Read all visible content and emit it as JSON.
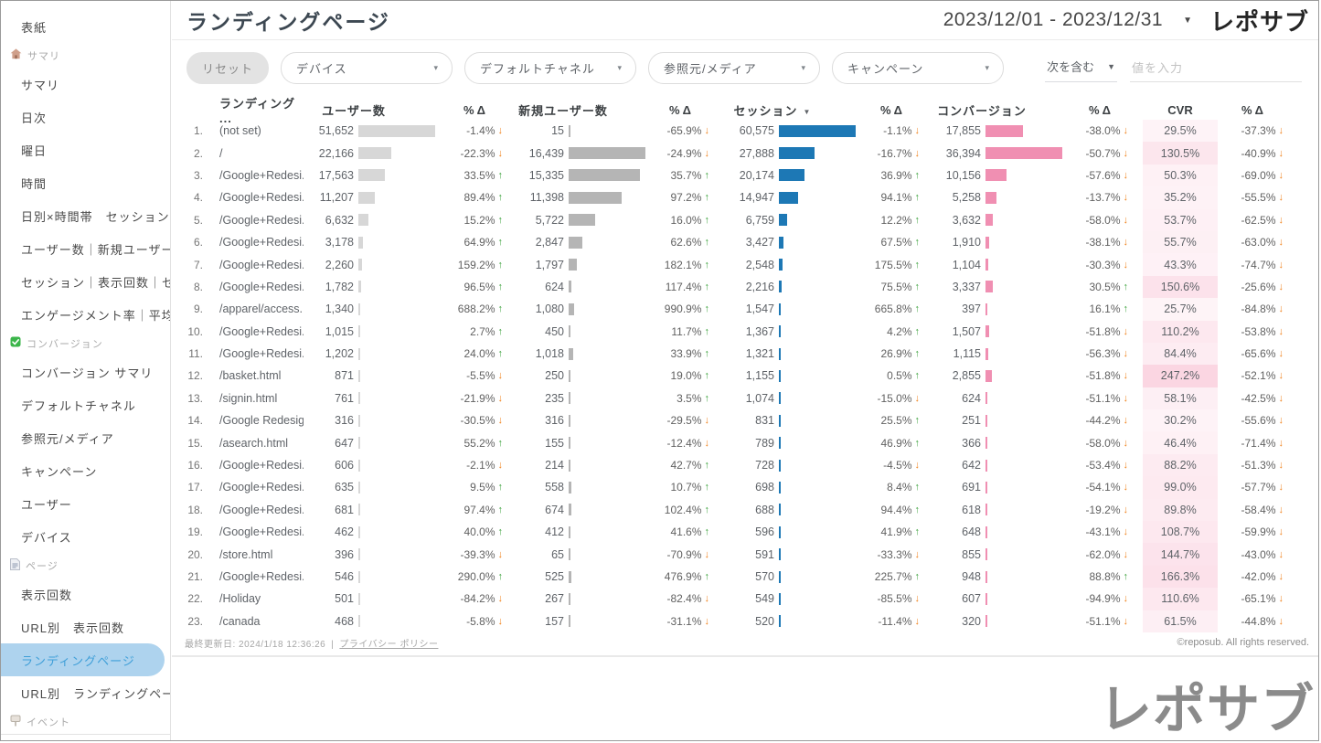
{
  "sidebar": {
    "items": [
      {
        "type": "item",
        "label": "表紙"
      },
      {
        "type": "section",
        "label": "サマリ",
        "icon": "home-icon"
      },
      {
        "type": "item",
        "label": "サマリ"
      },
      {
        "type": "item",
        "label": "日次"
      },
      {
        "type": "item",
        "label": "曜日"
      },
      {
        "type": "item",
        "label": "時間"
      },
      {
        "type": "item",
        "label": "日別×時間帯　セッション"
      },
      {
        "type": "item",
        "label": "ユーザー数｜新規ユーザー数"
      },
      {
        "type": "item",
        "label": "セッション｜表示回数｜セ..."
      },
      {
        "type": "item",
        "label": "エンゲージメント率｜平均..."
      },
      {
        "type": "section",
        "label": "コンバージョン",
        "icon": "check-icon"
      },
      {
        "type": "item",
        "label": "コンバージョン サマリ"
      },
      {
        "type": "item",
        "label": "デフォルトチャネル"
      },
      {
        "type": "item",
        "label": "参照元/メディア"
      },
      {
        "type": "item",
        "label": "キャンペーン"
      },
      {
        "type": "item",
        "label": "ユーザー"
      },
      {
        "type": "item",
        "label": "デバイス"
      },
      {
        "type": "section",
        "label": "ページ",
        "icon": "page-icon"
      },
      {
        "type": "item",
        "label": "表示回数"
      },
      {
        "type": "item",
        "label": "URL別　表示回数"
      },
      {
        "type": "item",
        "label": "ランディングページ",
        "active": true
      },
      {
        "type": "item",
        "label": "URL別　ランディングページ"
      },
      {
        "type": "section",
        "label": "イベント",
        "icon": "sign-icon"
      }
    ],
    "collapse_icon": "chevron-left-icon"
  },
  "header": {
    "title": "ランディングページ",
    "date_range": "2023/12/01 - 2023/12/31",
    "logo": "レポサブ"
  },
  "filters": {
    "reset_label": "リセット",
    "dropdowns": [
      "デバイス",
      "デフォルトチャネル",
      "参照元/メディア",
      "キャンペーン"
    ],
    "condition": "次を含む",
    "input_placeholder": "値を入力"
  },
  "table": {
    "headers": [
      "ランディング ...",
      "ユーザー数",
      "% Δ",
      "新規ユーザー数",
      "% Δ",
      "セッション",
      "% Δ",
      "コンバージョン",
      "% Δ",
      "CVR",
      "% Δ"
    ],
    "sort_column": "セッション",
    "rows": [
      {
        "n": "1.",
        "page": "(not set)",
        "users": "51,652",
        "d1": "-1.4%",
        "nu": "15",
        "d2": "-65.9%",
        "sess": "60,575",
        "d3": "-1.1%",
        "conv": "17,855",
        "d4": "-38.0%",
        "cvr": "29.5%",
        "d5": "-37.3%"
      },
      {
        "n": "2.",
        "page": "/",
        "users": "22,166",
        "d1": "-22.3%",
        "nu": "16,439",
        "d2": "-24.9%",
        "sess": "27,888",
        "d3": "-16.7%",
        "conv": "36,394",
        "d4": "-50.7%",
        "cvr": "130.5%",
        "d5": "-40.9%"
      },
      {
        "n": "3.",
        "page": "/Google+Redesi...",
        "users": "17,563",
        "d1": "33.5%",
        "nu": "15,335",
        "d2": "35.7%",
        "sess": "20,174",
        "d3": "36.9%",
        "conv": "10,156",
        "d4": "-57.6%",
        "cvr": "50.3%",
        "d5": "-69.0%"
      },
      {
        "n": "4.",
        "page": "/Google+Redesi...",
        "users": "11,207",
        "d1": "89.4%",
        "nu": "11,398",
        "d2": "97.2%",
        "sess": "14,947",
        "d3": "94.1%",
        "conv": "5,258",
        "d4": "-13.7%",
        "cvr": "35.2%",
        "d5": "-55.5%"
      },
      {
        "n": "5.",
        "page": "/Google+Redesi...",
        "users": "6,632",
        "d1": "15.2%",
        "nu": "5,722",
        "d2": "16.0%",
        "sess": "6,759",
        "d3": "12.2%",
        "conv": "3,632",
        "d4": "-58.0%",
        "cvr": "53.7%",
        "d5": "-62.5%"
      },
      {
        "n": "6.",
        "page": "/Google+Redesi...",
        "users": "3,178",
        "d1": "64.9%",
        "nu": "2,847",
        "d2": "62.6%",
        "sess": "3,427",
        "d3": "67.5%",
        "conv": "1,910",
        "d4": "-38.1%",
        "cvr": "55.7%",
        "d5": "-63.0%"
      },
      {
        "n": "7.",
        "page": "/Google+Redesi...",
        "users": "2,260",
        "d1": "159.2%",
        "nu": "1,797",
        "d2": "182.1%",
        "sess": "2,548",
        "d3": "175.5%",
        "conv": "1,104",
        "d4": "-30.3%",
        "cvr": "43.3%",
        "d5": "-74.7%"
      },
      {
        "n": "8.",
        "page": "/Google+Redesi...",
        "users": "1,782",
        "d1": "96.5%",
        "nu": "624",
        "d2": "117.4%",
        "sess": "2,216",
        "d3": "75.5%",
        "conv": "3,337",
        "d4": "30.5%",
        "cvr": "150.6%",
        "d5": "-25.6%"
      },
      {
        "n": "9.",
        "page": "/apparel/access...",
        "users": "1,340",
        "d1": "688.2%",
        "nu": "1,080",
        "d2": "990.9%",
        "sess": "1,547",
        "d3": "665.8%",
        "conv": "397",
        "d4": "16.1%",
        "cvr": "25.7%",
        "d5": "-84.8%"
      },
      {
        "n": "10.",
        "page": "/Google+Redesi...",
        "users": "1,015",
        "d1": "2.7%",
        "nu": "450",
        "d2": "11.7%",
        "sess": "1,367",
        "d3": "4.2%",
        "conv": "1,507",
        "d4": "-51.8%",
        "cvr": "110.2%",
        "d5": "-53.8%"
      },
      {
        "n": "11.",
        "page": "/Google+Redesi...",
        "users": "1,202",
        "d1": "24.0%",
        "nu": "1,018",
        "d2": "33.9%",
        "sess": "1,321",
        "d3": "26.9%",
        "conv": "1,115",
        "d4": "-56.3%",
        "cvr": "84.4%",
        "d5": "-65.6%"
      },
      {
        "n": "12.",
        "page": "/basket.html",
        "users": "871",
        "d1": "-5.5%",
        "nu": "250",
        "d2": "19.0%",
        "sess": "1,155",
        "d3": "0.5%",
        "conv": "2,855",
        "d4": "-51.8%",
        "cvr": "247.2%",
        "d5": "-52.1%"
      },
      {
        "n": "13.",
        "page": "/signin.html",
        "users": "761",
        "d1": "-21.9%",
        "nu": "235",
        "d2": "3.5%",
        "sess": "1,074",
        "d3": "-15.0%",
        "conv": "624",
        "d4": "-51.1%",
        "cvr": "58.1%",
        "d5": "-42.5%"
      },
      {
        "n": "14.",
        "page": "/Google Redesig...",
        "users": "316",
        "d1": "-30.5%",
        "nu": "316",
        "d2": "-29.5%",
        "sess": "831",
        "d3": "25.5%",
        "conv": "251",
        "d4": "-44.2%",
        "cvr": "30.2%",
        "d5": "-55.6%"
      },
      {
        "n": "15.",
        "page": "/asearch.html",
        "users": "647",
        "d1": "55.2%",
        "nu": "155",
        "d2": "-12.4%",
        "sess": "789",
        "d3": "46.9%",
        "conv": "366",
        "d4": "-58.0%",
        "cvr": "46.4%",
        "d5": "-71.4%"
      },
      {
        "n": "16.",
        "page": "/Google+Redesi...",
        "users": "606",
        "d1": "-2.1%",
        "nu": "214",
        "d2": "42.7%",
        "sess": "728",
        "d3": "-4.5%",
        "conv": "642",
        "d4": "-53.4%",
        "cvr": "88.2%",
        "d5": "-51.3%"
      },
      {
        "n": "17.",
        "page": "/Google+Redesi...",
        "users": "635",
        "d1": "9.5%",
        "nu": "558",
        "d2": "10.7%",
        "sess": "698",
        "d3": "8.4%",
        "conv": "691",
        "d4": "-54.1%",
        "cvr": "99.0%",
        "d5": "-57.7%"
      },
      {
        "n": "18.",
        "page": "/Google+Redesi...",
        "users": "681",
        "d1": "97.4%",
        "nu": "674",
        "d2": "102.4%",
        "sess": "688",
        "d3": "94.4%",
        "conv": "618",
        "d4": "-19.2%",
        "cvr": "89.8%",
        "d5": "-58.4%"
      },
      {
        "n": "19.",
        "page": "/Google+Redesi...",
        "users": "462",
        "d1": "40.0%",
        "nu": "412",
        "d2": "41.6%",
        "sess": "596",
        "d3": "41.9%",
        "conv": "648",
        "d4": "-43.1%",
        "cvr": "108.7%",
        "d5": "-59.9%"
      },
      {
        "n": "20.",
        "page": "/store.html",
        "users": "396",
        "d1": "-39.3%",
        "nu": "65",
        "d2": "-70.9%",
        "sess": "591",
        "d3": "-33.3%",
        "conv": "855",
        "d4": "-62.0%",
        "cvr": "144.7%",
        "d5": "-43.0%"
      },
      {
        "n": "21.",
        "page": "/Google+Redesi...",
        "users": "546",
        "d1": "290.0%",
        "nu": "525",
        "d2": "476.9%",
        "sess": "570",
        "d3": "225.7%",
        "conv": "948",
        "d4": "88.8%",
        "cvr": "166.3%",
        "d5": "-42.0%"
      },
      {
        "n": "22.",
        "page": "/Holiday",
        "users": "501",
        "d1": "-84.2%",
        "nu": "267",
        "d2": "-82.4%",
        "sess": "549",
        "d3": "-85.5%",
        "conv": "607",
        "d4": "-94.9%",
        "cvr": "110.6%",
        "d5": "-65.1%"
      },
      {
        "n": "23.",
        "page": "/canada",
        "users": "468",
        "d1": "-5.8%",
        "nu": "157",
        "d2": "-31.1%",
        "sess": "520",
        "d3": "-11.4%",
        "conv": "320",
        "d4": "-51.1%",
        "cvr": "61.5%",
        "d5": "-44.8%"
      }
    ]
  },
  "footer": {
    "last_updated": "最終更新日: 2024/1/18 12:36:26",
    "privacy_link": "プライバシー ポリシー",
    "copyright": "©reposub. All rights reserved.",
    "watermark_logo": "レポサブ",
    "watermark_text": "reposub"
  },
  "colors": {
    "bar_users": "#d7d7d7",
    "bar_new_users": "#b5b5b5",
    "bar_sessions": "#1d78b5",
    "bar_conversions": "#f08fb2",
    "cvr_heat": "#f48fb1",
    "delta_up": "#3fa33f",
    "delta_down": "#f0831e",
    "active_item_bg": "#aed3ee",
    "active_item_text": "#3f9fd8"
  }
}
